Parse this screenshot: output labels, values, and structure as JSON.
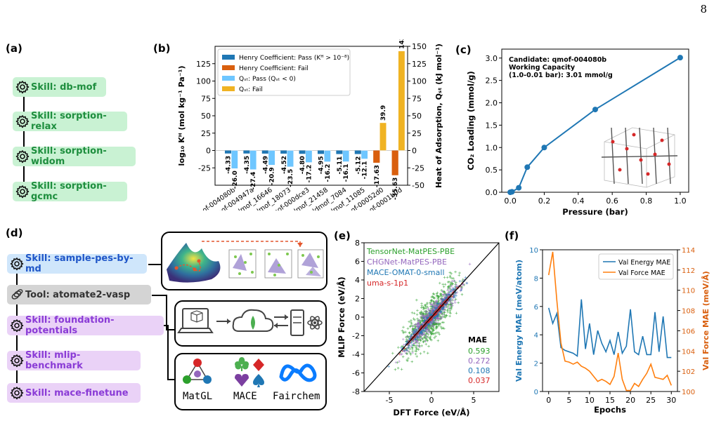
{
  "page_number": "8",
  "panel_labels": {
    "a": "(a)",
    "b": "(b)",
    "c": "(c)",
    "d": "(d)",
    "e": "(e)",
    "f": "(f)"
  },
  "panel_a": {
    "skills": [
      "Skill: db-mof",
      "Skill: sorption-relax",
      "Skill: sorption-widom",
      "Skill: sorption-gcmc"
    ]
  },
  "panel_d": {
    "items": [
      {
        "label": "Skill: sample-pes-by-md",
        "style": "blue"
      },
      {
        "label": "Tool: atomate2-vasp",
        "style": "gray"
      },
      {
        "label": "Skill: foundation-potentials",
        "style": "purple"
      },
      {
        "label": "Skill: mlip-benchmark",
        "style": "purple"
      },
      {
        "label": "Skill: mace-finetune",
        "style": "purple"
      }
    ],
    "logos": {
      "matgl": "MatGL",
      "mace": "MACE",
      "fairchem": "Fairchem"
    }
  },
  "colors": {
    "blue": "#1f77b4",
    "orange": "#d95f0e",
    "light_blue": "#6ec6ff",
    "gold": "#f0b323",
    "green": "#2ca02c",
    "purple": "#9467bd",
    "red": "#d62728"
  },
  "chart_data": [
    {
      "panel": "b",
      "type": "bar",
      "categories": [
        "qmof-004080b",
        "qmof-004947a",
        "ddmof_16646",
        "ddmof_18073",
        "qmof-000dce3",
        "ddmof_21458",
        "ddmof_7084",
        "ddmof_11085",
        "qmof-00052d0",
        "qmof-0001b0d"
      ],
      "series": [
        {
          "name": "Henry Coefficient: Pass (K_H > 10^-8)",
          "axis": "left",
          "values": [
            -4.33,
            -4.35,
            -4.49,
            -4.52,
            -4.8,
            -4.95,
            -5.11,
            -5.12,
            null,
            null
          ]
        },
        {
          "name": "Henry Coefficient: Fail",
          "axis": "left",
          "values": [
            null,
            null,
            null,
            null,
            null,
            null,
            null,
            null,
            -17.63,
            -35.63
          ]
        },
        {
          "name": "Q_st: Pass (Q_st < 0)",
          "axis": "right",
          "values": [
            -26.0,
            -27.4,
            -20.9,
            -23.5,
            -17.2,
            -16.2,
            -16.1,
            -12.1,
            null,
            null
          ]
        },
        {
          "name": "Q_st: Fail",
          "axis": "right",
          "values": [
            null,
            null,
            null,
            null,
            null,
            null,
            null,
            null,
            39.9,
            143.2
          ]
        }
      ],
      "legend": [
        "Henry Coefficient: Pass (K_H > 10^-8)",
        "Henry Coefficient: Fail",
        "Q_st: Pass (Q_st < 0)",
        "Q_st: Fail"
      ],
      "ylabel": "log10 K_H (mol kg^-1 Pa^-1)",
      "y2label": "Heat of Adsorption, Q_st (kJ mol^-1)",
      "ylim": [
        -50,
        150
      ],
      "y2lim": [
        -50,
        150
      ],
      "yticks": [
        -25,
        0,
        25,
        50,
        75,
        100,
        125
      ],
      "y2ticks": [
        -50,
        -25,
        0,
        25,
        50,
        75,
        100,
        125,
        150
      ],
      "legend_position": "top-left"
    },
    {
      "panel": "c",
      "type": "line",
      "x": [
        0.0,
        0.01,
        0.05,
        0.1,
        0.2,
        0.5,
        1.0
      ],
      "y": [
        0.0,
        0.01,
        0.1,
        0.56,
        1.0,
        1.85,
        3.01
      ],
      "xlabel": "Pressure (bar)",
      "ylabel": "CO2 Loading (mmol/g)",
      "xlim": [
        -0.05,
        1.05
      ],
      "ylim": [
        0,
        3.2
      ],
      "xticks": [
        0.0,
        0.2,
        0.4,
        0.6,
        0.8,
        1.0
      ],
      "yticks": [
        0.0,
        0.5,
        1.0,
        1.5,
        2.0,
        2.5,
        3.0
      ],
      "annotation": [
        "Candidate: qmof-004080b",
        "Working Capacity",
        "(1.0-0.01 bar): 3.01 mmol/g"
      ]
    },
    {
      "panel": "e",
      "type": "scatter",
      "xlabel": "DFT Force (eV/Å)",
      "ylabel": "MLIP Force (eV/Å)",
      "xlim": [
        -8,
        8
      ],
      "ylim": [
        -8,
        8
      ],
      "xticks": [
        -5,
        0,
        5
      ],
      "yticks": [
        -8,
        -6,
        -4,
        -2,
        0,
        2,
        4,
        6,
        8
      ],
      "series": [
        {
          "name": "TensorNet-MatPES-PBE",
          "mae": "0.593"
        },
        {
          "name": "CHGNet-MatPES-PBE",
          "mae": "0.272"
        },
        {
          "name": "MACE-OMAT-0-small",
          "mae": "0.108"
        },
        {
          "name": "uma-s-1p1",
          "mae": "0.037"
        }
      ],
      "mae_title": "MAE"
    },
    {
      "panel": "f",
      "type": "line",
      "xlabel": "Epochs",
      "ylabel": "Val Energy MAE (meV/atom)",
      "y2label": "Val Force MAE (meV/Å)",
      "x": [
        0,
        1,
        2,
        3,
        4,
        5,
        6,
        7,
        8,
        9,
        10,
        11,
        12,
        13,
        14,
        15,
        16,
        17,
        18,
        19,
        20,
        21,
        22,
        23,
        24,
        25,
        26,
        27,
        28,
        29,
        30
      ],
      "series": [
        {
          "name": "Val Energy MAE",
          "axis": "left",
          "values": [
            5.9,
            4.8,
            5.5,
            3.1,
            2.9,
            2.8,
            2.7,
            2.5,
            6.5,
            3.0,
            4.8,
            2.6,
            4.3,
            3.4,
            2.8,
            3.6,
            2.6,
            4.2,
            2.7,
            3.2,
            5.8,
            2.8,
            2.6,
            3.9,
            2.6,
            2.6,
            5.6,
            2.8,
            5.3,
            2.4,
            2.4
          ]
        },
        {
          "name": "Val Force MAE",
          "axis": "right",
          "values": [
            111.5,
            113.8,
            109.0,
            104.8,
            103.0,
            102.9,
            102.7,
            102.9,
            102.5,
            102.3,
            102.0,
            101.5,
            101.0,
            101.2,
            101.0,
            100.7,
            101.5,
            103.8,
            101.2,
            100.1,
            100.1,
            100.8,
            100.5,
            101.2,
            101.8,
            102.7,
            101.4,
            101.3,
            101.2,
            101.6,
            100.6
          ]
        }
      ],
      "xticks": [
        0,
        5,
        10,
        15,
        20,
        25,
        30
      ],
      "yticks": [
        0,
        2,
        4,
        6,
        8,
        10
      ],
      "y2ticks": [
        100,
        102,
        104,
        106,
        108,
        110,
        112,
        114
      ],
      "ylim": [
        0,
        10
      ],
      "y2lim": [
        100,
        114
      ],
      "legend": [
        "Val Energy MAE",
        "Val Force MAE"
      ],
      "legend_position": "top-right"
    }
  ]
}
